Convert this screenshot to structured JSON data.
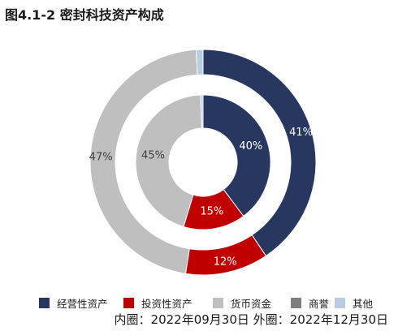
{
  "title": "图4.1-2 密封科技资产构成",
  "footnote": "内圈：2022年09月30日 外圈：2022年12月30日",
  "chart_data": {
    "type": "pie",
    "subtype": "double-donut",
    "title": "图4.1-2 密封科技资产构成",
    "categories": [
      "经营性资产",
      "投资性资产",
      "货币资金",
      "商誉",
      "其他"
    ],
    "colors": [
      "#27375f",
      "#c00000",
      "#bfbfbf",
      "#7f7f7f",
      "#b8cce4"
    ],
    "label_colors": [
      "#ffffff",
      "#ffffff",
      "#404040",
      "#404040",
      "#404040"
    ],
    "series": [
      {
        "name": "内圈：2022年09月30日",
        "ring": "inner",
        "values": [
          40,
          15,
          45,
          0,
          0.6
        ],
        "labels": [
          "40%",
          "15%",
          "45%",
          "",
          ""
        ]
      },
      {
        "name": "外圈：2022年12月30日",
        "ring": "outer",
        "values": [
          41,
          12,
          47,
          0,
          1
        ],
        "labels": [
          "41%",
          "12%",
          "47%",
          "",
          ""
        ]
      }
    ],
    "legend_position": "bottom"
  }
}
